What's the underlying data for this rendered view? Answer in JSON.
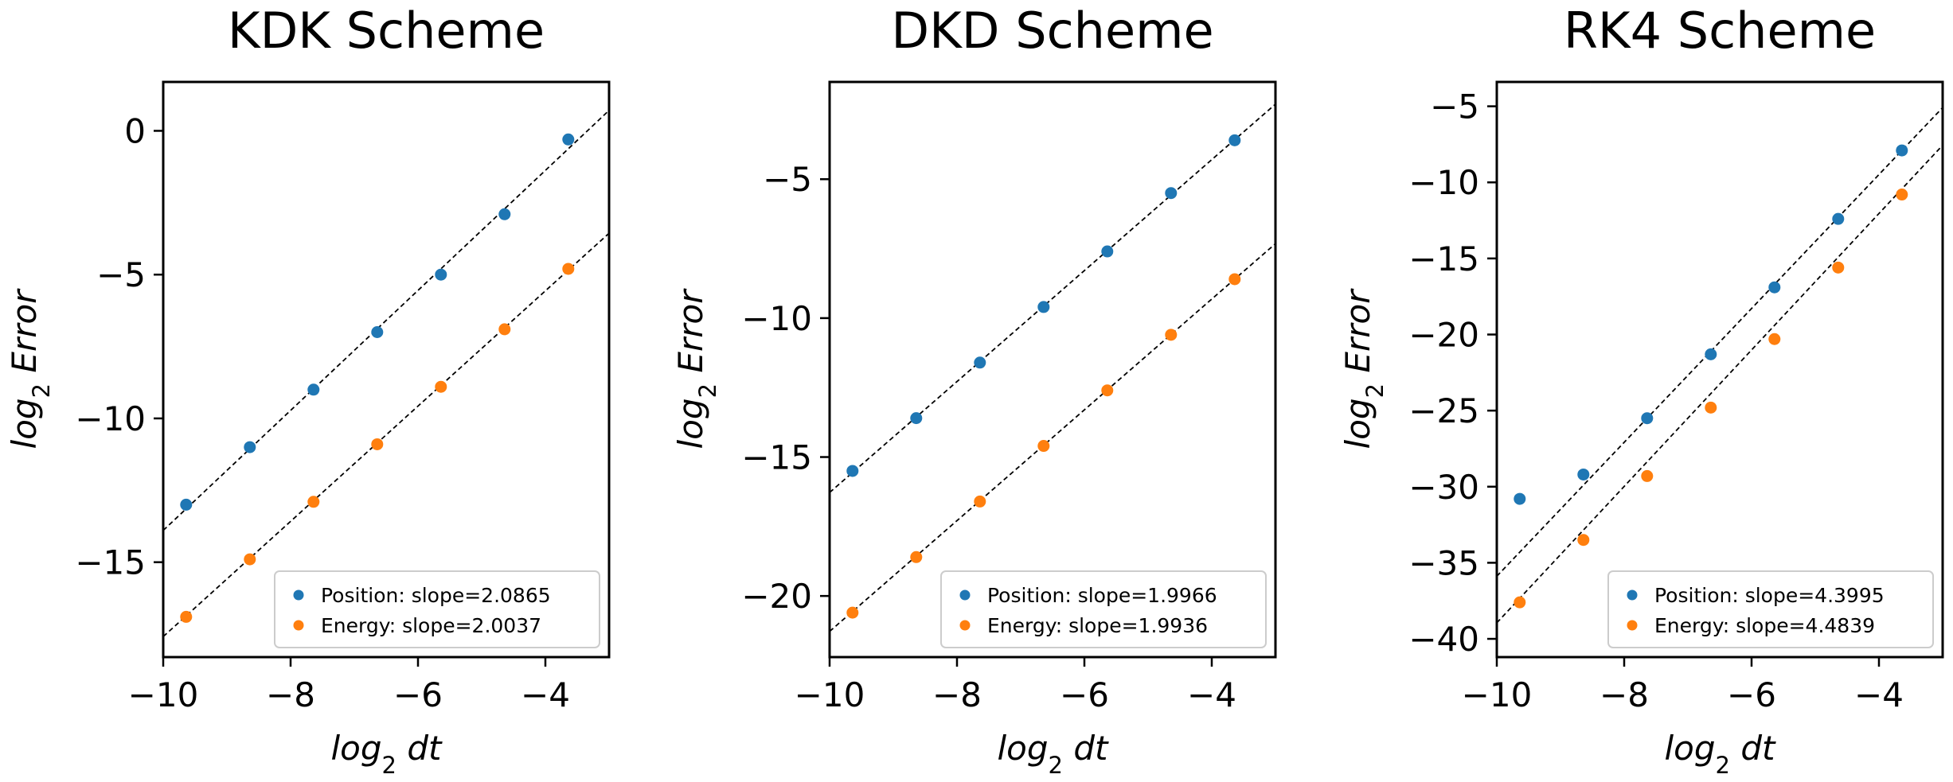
{
  "chart_data": [
    {
      "type": "scatter",
      "title": "KDK Scheme",
      "xlabel": "log",
      "xlabel_sub": "2",
      "xlabel_rest": " dt",
      "ylabel": "log",
      "ylabel_sub": "2",
      "ylabel_rest": " Error",
      "xlim": [
        -10,
        -3
      ],
      "ylim": [
        -18.3,
        1.7
      ],
      "xticks": [
        -10,
        -8,
        -6,
        -4
      ],
      "xtick_labels": [
        "−10",
        "−8",
        "−6",
        "−4"
      ],
      "yticks": [
        -15,
        -10,
        -5,
        0
      ],
      "ytick_labels": [
        "−15",
        "−10",
        "−5",
        "0"
      ],
      "legend_position": "lower-right",
      "series": [
        {
          "name": "Position: slope=2.0865",
          "color": "#1f77b4",
          "x": [
            -9.64,
            -8.64,
            -7.64,
            -6.64,
            -5.64,
            -4.64,
            -3.64
          ],
          "y": [
            -13.0,
            -11.0,
            -9.0,
            -7.0,
            -5.0,
            -2.9,
            -0.3
          ],
          "fit": {
            "slope": 2.0865,
            "intercept": 6.97
          }
        },
        {
          "name": "Energy: slope=2.0037",
          "color": "#ff7f0e",
          "x": [
            -9.64,
            -8.64,
            -7.64,
            -6.64,
            -5.64,
            -4.64,
            -3.64
          ],
          "y": [
            -16.9,
            -14.9,
            -12.9,
            -10.9,
            -8.9,
            -6.9,
            -4.8
          ],
          "fit": {
            "slope": 2.0037,
            "intercept": 2.45
          }
        }
      ]
    },
    {
      "type": "scatter",
      "title": "DKD Scheme",
      "xlabel": "log",
      "xlabel_sub": "2",
      "xlabel_rest": " dt",
      "ylabel": "log",
      "ylabel_sub": "2",
      "ylabel_rest": " Error",
      "xlim": [
        -10,
        -3
      ],
      "ylim": [
        -22.2,
        -1.5
      ],
      "xticks": [
        -10,
        -8,
        -6,
        -4
      ],
      "xtick_labels": [
        "−10",
        "−8",
        "−6",
        "−4"
      ],
      "yticks": [
        -20,
        -15,
        -10,
        -5
      ],
      "ytick_labels": [
        "−20",
        "−15",
        "−10",
        "−5"
      ],
      "legend_position": "lower-right",
      "series": [
        {
          "name": "Position: slope=1.9966",
          "color": "#1f77b4",
          "x": [
            -9.64,
            -8.64,
            -7.64,
            -6.64,
            -5.64,
            -4.64,
            -3.64
          ],
          "y": [
            -15.5,
            -13.6,
            -11.6,
            -9.6,
            -7.6,
            -5.5,
            -3.6
          ],
          "fit": {
            "slope": 1.9966,
            "intercept": 3.69
          }
        },
        {
          "name": "Energy: slope=1.9936",
          "color": "#ff7f0e",
          "x": [
            -9.64,
            -8.64,
            -7.64,
            -6.64,
            -5.64,
            -4.64,
            -3.64
          ],
          "y": [
            -20.6,
            -18.6,
            -16.6,
            -14.6,
            -12.6,
            -10.6,
            -8.6
          ],
          "fit": {
            "slope": 1.9936,
            "intercept": -1.34
          }
        }
      ]
    },
    {
      "type": "scatter",
      "title": "RK4 Scheme",
      "xlabel": "log",
      "xlabel_sub": "2",
      "xlabel_rest": " dt",
      "ylabel": "log",
      "ylabel_sub": "2",
      "ylabel_rest": " Error",
      "xlim": [
        -10,
        -3
      ],
      "ylim": [
        -41.2,
        -3.4
      ],
      "xticks": [
        -10,
        -8,
        -6,
        -4
      ],
      "xtick_labels": [
        "−10",
        "−8",
        "−6",
        "−4"
      ],
      "yticks": [
        -40,
        -35,
        -30,
        -25,
        -20,
        -15,
        -10,
        -5
      ],
      "ytick_labels": [
        "−40",
        "−35",
        "−30",
        "−25",
        "−20",
        "−15",
        "−10",
        "−5"
      ],
      "legend_position": "lower-right",
      "series": [
        {
          "name": "Position: slope=4.3995",
          "color": "#1f77b4",
          "x": [
            -9.64,
            -8.64,
            -7.64,
            -6.64,
            -5.64,
            -4.64,
            -3.64
          ],
          "y": [
            -30.8,
            -29.2,
            -25.5,
            -21.3,
            -16.9,
            -12.4,
            -7.9
          ],
          "fit": {
            "slope": 4.3995,
            "intercept": 8.11
          }
        },
        {
          "name": "Energy: slope=4.4839",
          "color": "#ff7f0e",
          "x": [
            -9.64,
            -8.64,
            -7.64,
            -6.64,
            -5.64,
            -4.64,
            -3.64
          ],
          "y": [
            -37.6,
            -33.5,
            -29.3,
            -24.8,
            -20.3,
            -15.6,
            -10.8
          ],
          "fit": {
            "slope": 4.4839,
            "intercept": 5.89
          }
        }
      ]
    }
  ]
}
